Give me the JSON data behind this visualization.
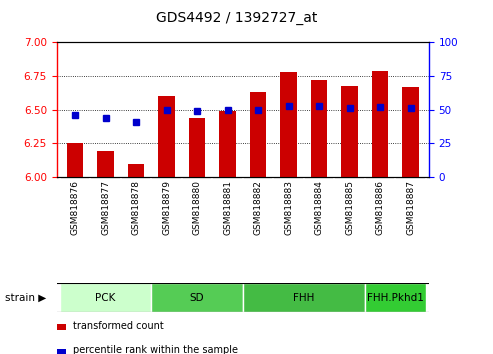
{
  "title": "GDS4492 / 1392727_at",
  "samples": [
    "GSM818876",
    "GSM818877",
    "GSM818878",
    "GSM818879",
    "GSM818880",
    "GSM818881",
    "GSM818882",
    "GSM818883",
    "GSM818884",
    "GSM818885",
    "GSM818886",
    "GSM818887"
  ],
  "transformed_count": [
    6.25,
    6.19,
    6.1,
    6.6,
    6.44,
    6.49,
    6.63,
    6.78,
    6.72,
    6.68,
    6.79,
    6.67
  ],
  "percentile_rank": [
    46,
    44,
    41,
    50,
    49,
    50,
    50,
    53,
    53,
    51,
    52,
    51
  ],
  "bar_color": "#cc0000",
  "dot_color": "#0000cc",
  "ylim_left": [
    6.0,
    7.0
  ],
  "ylim_right": [
    0,
    100
  ],
  "yticks_left": [
    6.0,
    6.25,
    6.5,
    6.75,
    7.0
  ],
  "yticks_right": [
    0,
    25,
    50,
    75,
    100
  ],
  "groups": [
    {
      "label": "PCK",
      "start": 0,
      "end": 2,
      "color": "#ccffcc"
    },
    {
      "label": "SD",
      "start": 3,
      "end": 5,
      "color": "#55cc55"
    },
    {
      "label": "FHH",
      "start": 6,
      "end": 9,
      "color": "#44bb44"
    },
    {
      "label": "FHH.Pkhd1",
      "start": 10,
      "end": 11,
      "color": "#33cc33"
    }
  ],
  "bar_bottom": 6.0,
  "grid_color": "#000000",
  "plot_bg": "#ffffff",
  "xtick_bg": "#d8d8d8",
  "legend_items": [
    {
      "label": "transformed count",
      "color": "#cc0000"
    },
    {
      "label": "percentile rank within the sample",
      "color": "#0000cc"
    }
  ]
}
